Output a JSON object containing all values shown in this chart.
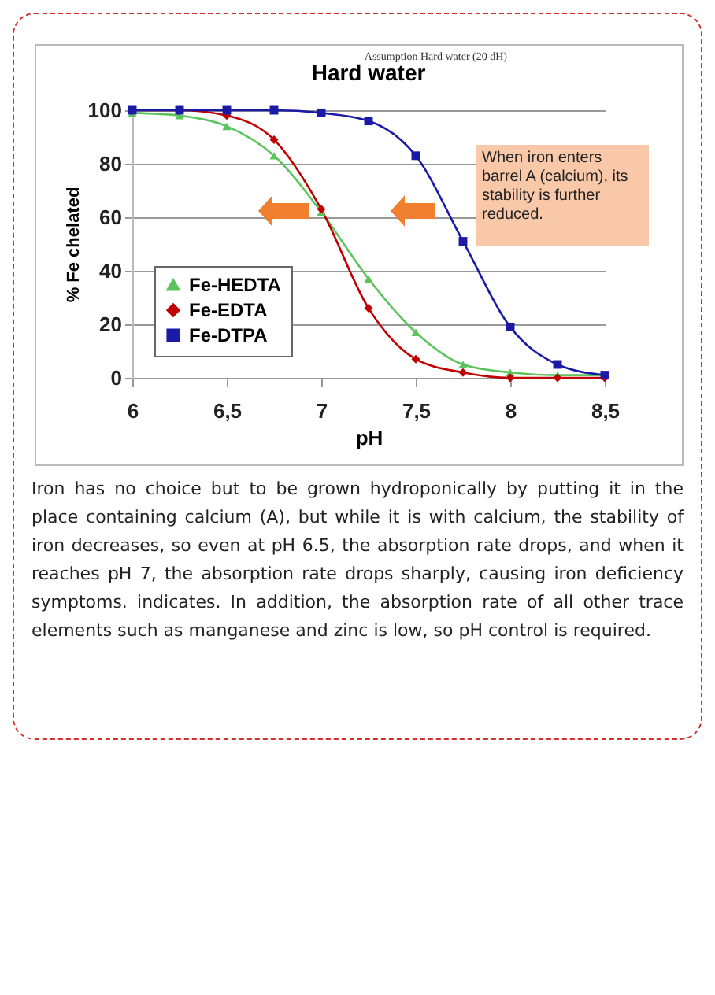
{
  "chart_data": {
    "type": "line",
    "title": "Hard water",
    "xlabel": "pH",
    "ylabel": "% Fe chelated",
    "x": [
      6,
      6.25,
      6.5,
      6.75,
      7,
      7.25,
      7.5,
      7.75,
      8,
      8.25,
      8.5
    ],
    "series": [
      {
        "name": "Fe-HEDTA",
        "color": "#5cc45c",
        "marker": "triangle",
        "values": [
          99,
          98,
          94,
          83,
          62,
          37,
          17,
          5,
          2,
          1,
          1
        ]
      },
      {
        "name": "Fe-EDTA",
        "color": "#c00000",
        "marker": "diamond",
        "values": [
          100,
          100,
          98,
          89,
          63,
          26,
          7,
          2,
          0,
          0,
          0
        ]
      },
      {
        "name": "Fe-DTPA",
        "color": "#1a1aa6",
        "marker": "square",
        "values": [
          100,
          100,
          100,
          100,
          99,
          96,
          83,
          51,
          19,
          5,
          1
        ]
      }
    ],
    "xlim": [
      6,
      8.5
    ],
    "xticks": [
      6,
      {
        "value": 6.5,
        "label": "6,5"
      },
      7,
      {
        "value": 7.5,
        "label": "7,5"
      },
      8,
      {
        "value": 8.5,
        "label": "8,5"
      }
    ],
    "ylim": [
      0,
      100
    ],
    "yticks": [
      0,
      20,
      40,
      60,
      80,
      100
    ],
    "grid": "y",
    "legend": "bottom left",
    "annotations": [
      "Assumption Hard water (20 dH)",
      "When iron enters barrel A (calcium), its stability is further reduced.",
      "Iron has no choice but to be grown hydroponically by putting it in the place containing calcium (A), but while it is with calcium, the stability of iron decreases, so even at pH 6.5, the absorption rate drops, and when it reaches pH 7, the absorption rate drops sharply, causing iron deficiency symptoms. indicates. In addition, the absorption rate of all other trace elements such as manganese and zinc is low, so pH control is required."
    ]
  }
}
